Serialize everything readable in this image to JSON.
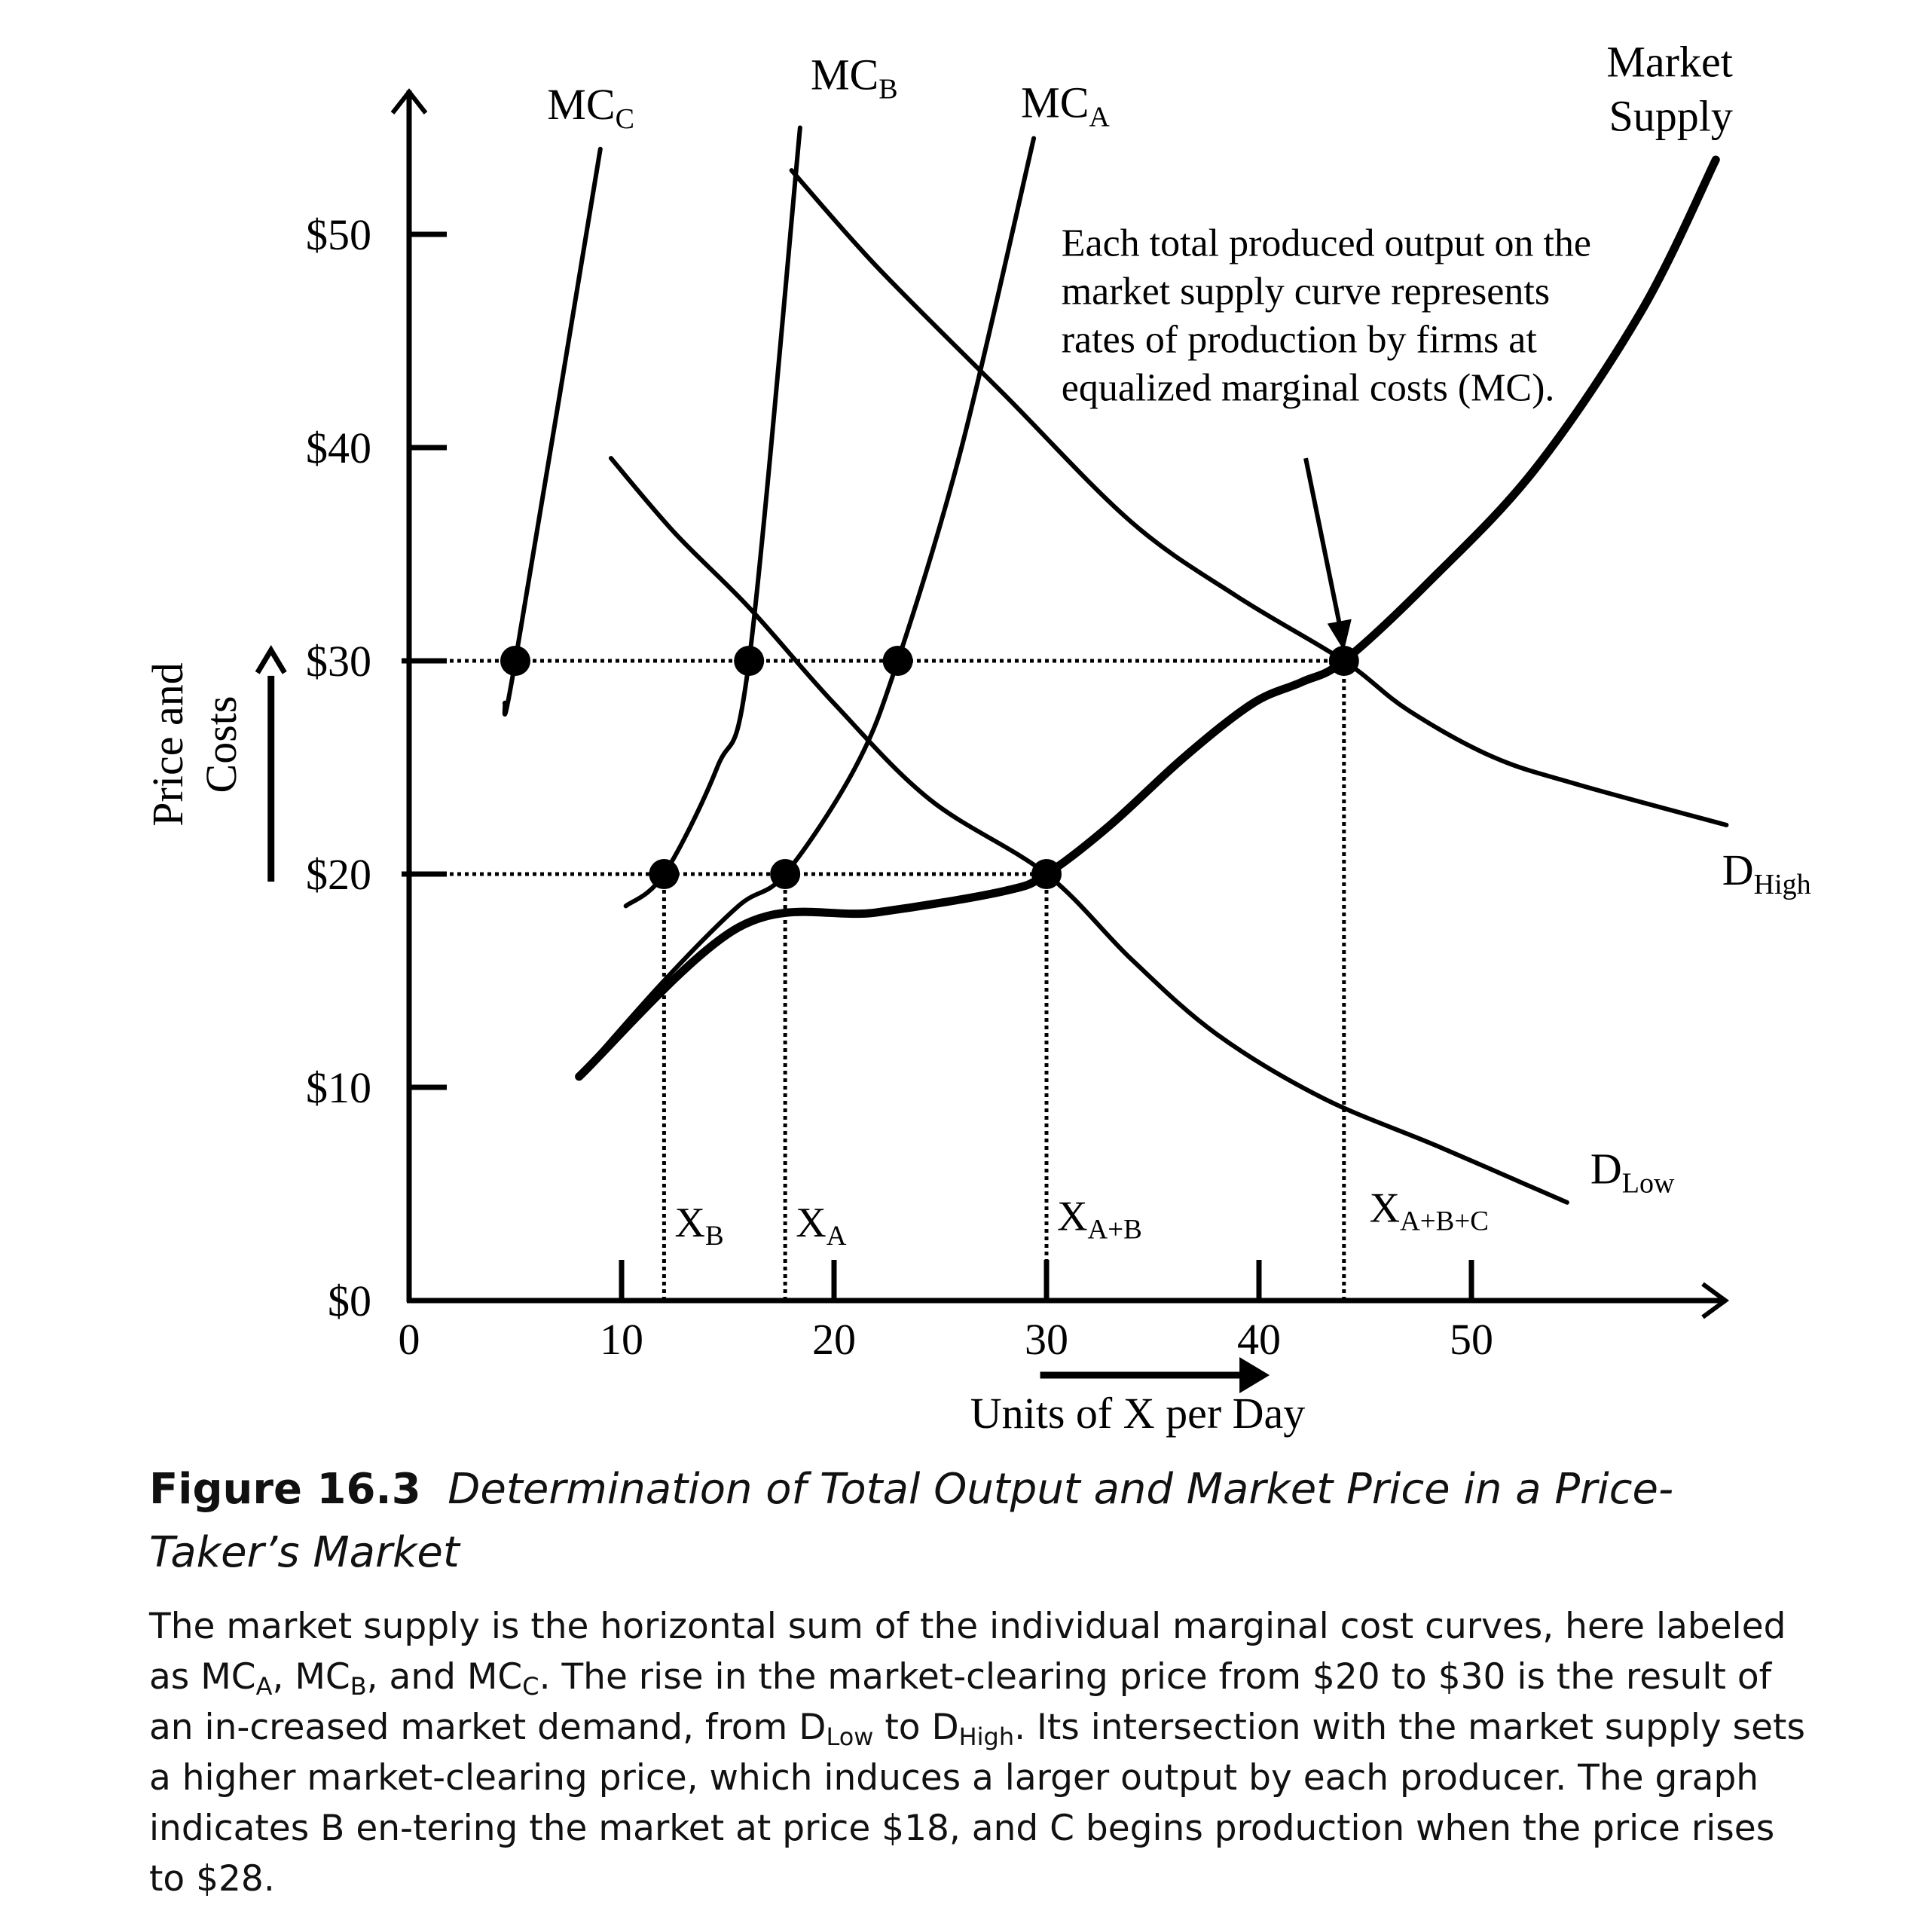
{
  "chart_data": {
    "type": "line",
    "xlabel": "Units of X per Day",
    "ylabel_line1": "Price and",
    "ylabel_line2": "Costs",
    "xlim": [
      0,
      62
    ],
    "ylim": [
      0,
      56
    ],
    "x_ticks": [
      {
        "value": 0,
        "label": "0"
      },
      {
        "value": 10,
        "label": "10"
      },
      {
        "value": 20,
        "label": "20"
      },
      {
        "value": 30,
        "label": "30"
      },
      {
        "value": 40,
        "label": "40"
      },
      {
        "value": 50,
        "label": "50"
      }
    ],
    "y_ticks": [
      {
        "value": 0,
        "label": "$0"
      },
      {
        "value": 10,
        "label": "$10"
      },
      {
        "value": 20,
        "label": "$20"
      },
      {
        "value": 30,
        "label": "$30"
      },
      {
        "value": 40,
        "label": "$40"
      },
      {
        "value": 50,
        "label": "$50"
      }
    ],
    "series": [
      {
        "id": "mc-c",
        "label": "MC",
        "label_sub": "C",
        "label_at": [
          6.5,
          55.4
        ],
        "weight": "normal",
        "points": [
          [
            4.5,
            28
          ],
          [
            5,
            30
          ],
          [
            9,
            54
          ]
        ]
      },
      {
        "id": "mc-b",
        "label": "MC",
        "label_sub": "B",
        "label_at": [
          18.9,
          56.8
        ],
        "weight": "normal",
        "points": [
          [
            10.2,
            18.5
          ],
          [
            12,
            20
          ],
          [
            14.5,
            25
          ],
          [
            16,
            30
          ],
          [
            18.4,
            55
          ]
        ]
      },
      {
        "id": "mc-a",
        "label": "MC",
        "label_sub": "A",
        "label_at": [
          28.8,
          55.5
        ],
        "weight": "normal",
        "points": [
          [
            8,
            10.5
          ],
          [
            12,
            15
          ],
          [
            15.5,
            18.5
          ],
          [
            17.7,
            20
          ],
          [
            21,
            25
          ],
          [
            23,
            30
          ],
          [
            26,
            40
          ],
          [
            29.4,
            54.5
          ]
        ]
      },
      {
        "id": "market-supply",
        "label": "Market",
        "label_line2": "Supply",
        "label_at": [
          62.3,
          57.4
        ],
        "weight": "bold",
        "points": [
          [
            8,
            10.5
          ],
          [
            15.5,
            17.5
          ],
          [
            22,
            18.2
          ],
          [
            28,
            19.2
          ],
          [
            30,
            20
          ],
          [
            33,
            22.3
          ],
          [
            36.5,
            25.5
          ],
          [
            39.7,
            28
          ],
          [
            42,
            29
          ],
          [
            44,
            30
          ],
          [
            48,
            33.7
          ],
          [
            53,
            39
          ],
          [
            58,
            46.4
          ],
          [
            61.5,
            53.5
          ]
        ]
      },
      {
        "id": "d-low",
        "label": "D",
        "label_sub": "Low",
        "label_at": [
          55.6,
          5.5
        ],
        "weight": "normal",
        "points": [
          [
            9.5,
            39.5
          ],
          [
            12.5,
            36
          ],
          [
            16,
            32.5
          ],
          [
            20,
            28
          ],
          [
            24.5,
            23.5
          ],
          [
            30,
            20
          ],
          [
            34,
            16
          ],
          [
            38,
            12.5
          ],
          [
            43,
            9.5
          ],
          [
            48.5,
            7.2
          ],
          [
            54.5,
            4.6
          ]
        ]
      },
      {
        "id": "d-high",
        "label": "D",
        "label_sub": "High",
        "label_at": [
          61.8,
          19.5
        ],
        "weight": "normal",
        "points": [
          [
            18,
            53
          ],
          [
            22,
            48.5
          ],
          [
            28,
            42.5
          ],
          [
            34,
            36.5
          ],
          [
            39,
            33
          ],
          [
            44,
            30
          ],
          [
            47,
            27.7
          ],
          [
            51,
            25.5
          ],
          [
            55,
            24.2
          ],
          [
            62,
            22.3
          ]
        ]
      }
    ],
    "points": [
      {
        "name": "mc-c-at-30",
        "x": 5,
        "y": 30
      },
      {
        "name": "mc-b-at-30",
        "x": 16,
        "y": 30
      },
      {
        "name": "mc-a-at-30",
        "x": 23,
        "y": 30
      },
      {
        "name": "supply-dhigh-equilibrium",
        "x": 44,
        "y": 30
      },
      {
        "name": "mc-b-at-20",
        "x": 12,
        "y": 20
      },
      {
        "name": "mc-a-at-20",
        "x": 17.7,
        "y": 20
      },
      {
        "name": "supply-dlow-equilibrium",
        "x": 30,
        "y": 20
      }
    ],
    "guides": [
      {
        "name": "price-30-guide",
        "x0": 0,
        "y0": 30,
        "x1": 44,
        "y1": 30
      },
      {
        "name": "price-20-guide",
        "x0": 0,
        "y0": 20,
        "x1": 30,
        "y1": 20
      },
      {
        "name": "xb-guide",
        "x0": 12,
        "y0": 0,
        "x1": 12,
        "y1": 20
      },
      {
        "name": "xa-guide",
        "x0": 17.7,
        "y0": 0,
        "x1": 17.7,
        "y1": 20
      },
      {
        "name": "xab-guide",
        "x0": 30,
        "y0": 0,
        "x1": 30,
        "y1": 20
      },
      {
        "name": "xabc-guide",
        "x0": 44,
        "y0": 0,
        "x1": 44,
        "y1": 30
      }
    ],
    "quantity_labels": [
      {
        "name": "xb-label",
        "label": "X",
        "sub": "B",
        "x": 12.5,
        "y": 3
      },
      {
        "name": "xa-label",
        "label": "X",
        "sub": "A",
        "x": 18.2,
        "y": 3
      },
      {
        "name": "xab-label",
        "label": "X",
        "sub": "A+B",
        "x": 30.5,
        "y": 3.3
      },
      {
        "name": "xabc-label",
        "label": "X",
        "sub": "A+B+C",
        "x": 45.2,
        "y": 3.7
      }
    ],
    "annotation": {
      "lines": [
        "Each total produced output on the",
        "market supply curve represents",
        "rates of production by firms at",
        "equalized marginal costs (MC)."
      ],
      "at": [
        30.7,
        49
      ],
      "arrow_from": [
        42.2,
        39.5
      ],
      "arrow_to": [
        44,
        30.4
      ]
    },
    "x_direction_arrow": {
      "from": 29.7,
      "to": 40.5,
      "y": -3.5
    },
    "y_direction_arrow": {
      "x": -6.5,
      "from": 20,
      "to": 30.5
    }
  },
  "figure": {
    "label": "Figure 16.3",
    "title": "Determination of Total Output and Market Price in a Price-Taker’s Market"
  },
  "caption": {
    "p1": "The market supply is the horizontal sum of the individual marginal cost curves, here labeled as MC",
    "s1": "A",
    "p2": ", MC",
    "s2": "B",
    "p3": ", and MC",
    "s3": "C",
    "p4": ". The rise in the market-clearing price from $20 to $30 is the result of an in-creased market demand, from D",
    "s4": "Low",
    "p5": " to D",
    "s5": "High",
    "p6": ". Its intersection with the market supply sets a higher market-clearing price, which induces a larger output by each producer. The graph indicates B en-tering the market at price $18, and C begins production when the price rises to $28."
  }
}
